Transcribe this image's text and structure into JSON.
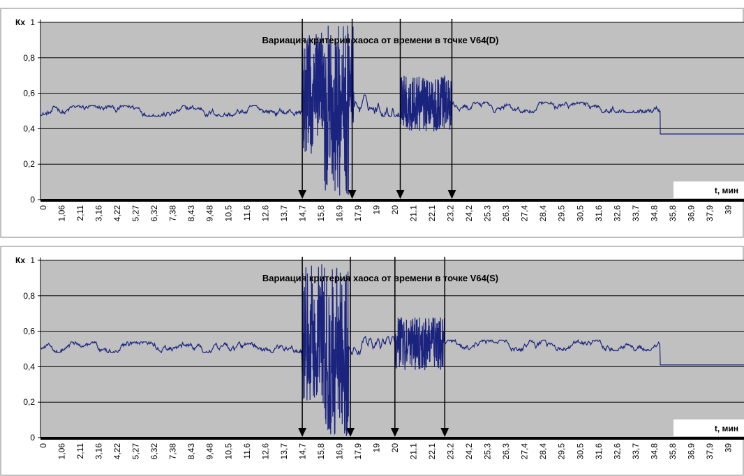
{
  "chart_data": [
    {
      "type": "line",
      "title": "Вариация критерия хаоса от времени в точке V64(D)",
      "ylabel": "Кх",
      "xlabel": "t, мин",
      "ylim": [
        0,
        1
      ],
      "yticks": [
        "0",
        "0,2",
        "0,4",
        "0,6",
        "0,8",
        "1"
      ],
      "xticks": [
        "0",
        "1,06",
        "2,11",
        "3,16",
        "4,22",
        "5,27",
        "6,32",
        "7,38",
        "8,43",
        "9,48",
        "10,5",
        "11,6",
        "12,6",
        "13,7",
        "14,7",
        "15,8",
        "16,9",
        "17,9",
        "19",
        "20",
        "21,1",
        "22,1",
        "23,2",
        "24,2",
        "25,3",
        "26,3",
        "27,4",
        "28,4",
        "29,5",
        "30,5",
        "31,6",
        "32,6",
        "33,7",
        "34,8",
        "35,8",
        "36,9",
        "37,9",
        "39"
      ],
      "xlim": [
        0,
        39.5
      ],
      "grid": true,
      "line_color": "#1a237e",
      "plot_bg": "#c0c0c0",
      "arrows_x": [
        14.7,
        17.5,
        20.2,
        23.1
      ],
      "series": [
        {
          "segments": [
            {
              "x": [
                0,
                14.7
              ],
              "mean": 0.5,
              "amp": 0.03
            },
            {
              "x": [
                14.7,
                15.9
              ],
              "min": 0.25,
              "max": 0.95
            },
            {
              "x": [
                15.9,
                17.3
              ],
              "min": 0.02,
              "max": 0.99
            },
            {
              "x": [
                17.3,
                17.6
              ],
              "min": 0.4,
              "max": 1.0
            },
            {
              "x": [
                17.6,
                20.2
              ],
              "mean": 0.53,
              "amp": 0.06
            },
            {
              "x": [
                20.2,
                23.1
              ],
              "min": 0.38,
              "max": 0.7
            },
            {
              "x": [
                23.1,
                34.8
              ],
              "mean": 0.52,
              "amp": 0.03
            },
            {
              "x": [
                34.8,
                39.5
              ],
              "value": 0.37
            }
          ]
        }
      ]
    },
    {
      "type": "line",
      "title": "Вариация критерия хаоса от времени в точке V64(S)",
      "ylabel": "Кх",
      "xlabel": "t, мин",
      "ylim": [
        0,
        1
      ],
      "yticks": [
        "0",
        "0,2",
        "0,4",
        "0,6",
        "0,8",
        "1"
      ],
      "xticks": [
        "0",
        "1,06",
        "2,11",
        "3,16",
        "4,22",
        "5,27",
        "6,32",
        "7,38",
        "8,43",
        "9,48",
        "10,5",
        "11,6",
        "12,6",
        "13,7",
        "14,7",
        "15,8",
        "16,9",
        "17,9",
        "19",
        "20",
        "21,1",
        "22,1",
        "23,2",
        "24,2",
        "25,3",
        "26,3",
        "27,4",
        "28,4",
        "29,5",
        "30,5",
        "31,6",
        "32,6",
        "33,7",
        "34,8",
        "35,8",
        "36,9",
        "37,9",
        "39"
      ],
      "xlim": [
        0,
        39.5
      ],
      "grid": true,
      "line_color": "#1a237e",
      "plot_bg": "#c0c0c0",
      "arrows_x": [
        14.7,
        17.4,
        19.9,
        22.7
      ],
      "series": [
        {
          "segments": [
            {
              "x": [
                0,
                14.7
              ],
              "mean": 0.51,
              "amp": 0.03
            },
            {
              "x": [
                14.7,
                15.8
              ],
              "min": 0.2,
              "max": 0.98
            },
            {
              "x": [
                15.8,
                17.3
              ],
              "min": 0.0,
              "max": 0.97
            },
            {
              "x": [
                17.3,
                19.9
              ],
              "mean": 0.52,
              "amp": 0.05
            },
            {
              "x": [
                19.9,
                22.7
              ],
              "min": 0.38,
              "max": 0.68
            },
            {
              "x": [
                22.7,
                34.8
              ],
              "mean": 0.52,
              "amp": 0.03
            },
            {
              "x": [
                34.8,
                39.5
              ],
              "value": 0.41
            }
          ]
        }
      ]
    }
  ]
}
